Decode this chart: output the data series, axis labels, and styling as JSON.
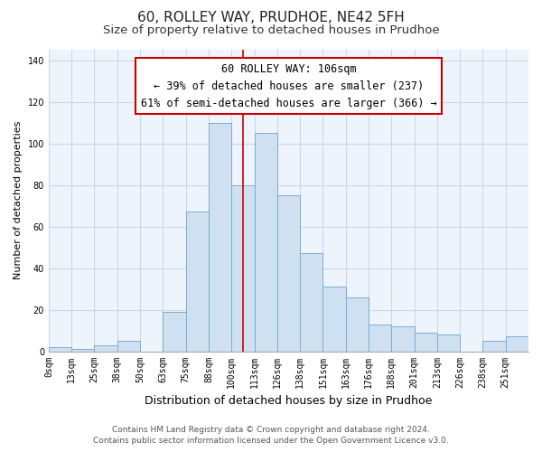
{
  "title": "60, ROLLEY WAY, PRUDHOE, NE42 5FH",
  "subtitle": "Size of property relative to detached houses in Prudhoe",
  "xlabel": "Distribution of detached houses by size in Prudhoe",
  "ylabel": "Number of detached properties",
  "bar_labels": [
    "0sqm",
    "13sqm",
    "25sqm",
    "38sqm",
    "50sqm",
    "63sqm",
    "75sqm",
    "88sqm",
    "100sqm",
    "113sqm",
    "126sqm",
    "138sqm",
    "151sqm",
    "163sqm",
    "176sqm",
    "188sqm",
    "201sqm",
    "213sqm",
    "226sqm",
    "238sqm",
    "251sqm"
  ],
  "bar_heights": [
    2,
    1,
    3,
    5,
    0,
    19,
    67,
    110,
    80,
    105,
    75,
    47,
    31,
    26,
    13,
    12,
    9,
    8,
    0,
    5,
    7
  ],
  "bar_color": "#cfe0f0",
  "bar_edgecolor": "#7aadd4",
  "vline_x": 8.0,
  "vline_color": "#cc0000",
  "annotation_line1": "60 ROLLEY WAY: 106sqm",
  "annotation_line2": "← 39% of detached houses are smaller (237)",
  "annotation_line3": "61% of semi-detached houses are larger (366) →",
  "annotation_box_edgecolor": "#cc0000",
  "annotation_box_facecolor": "#ffffff",
  "ylim": [
    0,
    145
  ],
  "yticks": [
    0,
    20,
    40,
    60,
    80,
    100,
    120,
    140
  ],
  "footer_line1": "Contains HM Land Registry data © Crown copyright and database right 2024.",
  "footer_line2": "Contains public sector information licensed under the Open Government Licence v3.0.",
  "background_color": "#ffffff",
  "plot_bg_color": "#eef4fb",
  "grid_color": "#c8d8e8",
  "title_fontsize": 11,
  "subtitle_fontsize": 9.5,
  "xlabel_fontsize": 9,
  "ylabel_fontsize": 8,
  "tick_fontsize": 7,
  "annotation_fontsize": 8.5,
  "footer_fontsize": 6.5
}
